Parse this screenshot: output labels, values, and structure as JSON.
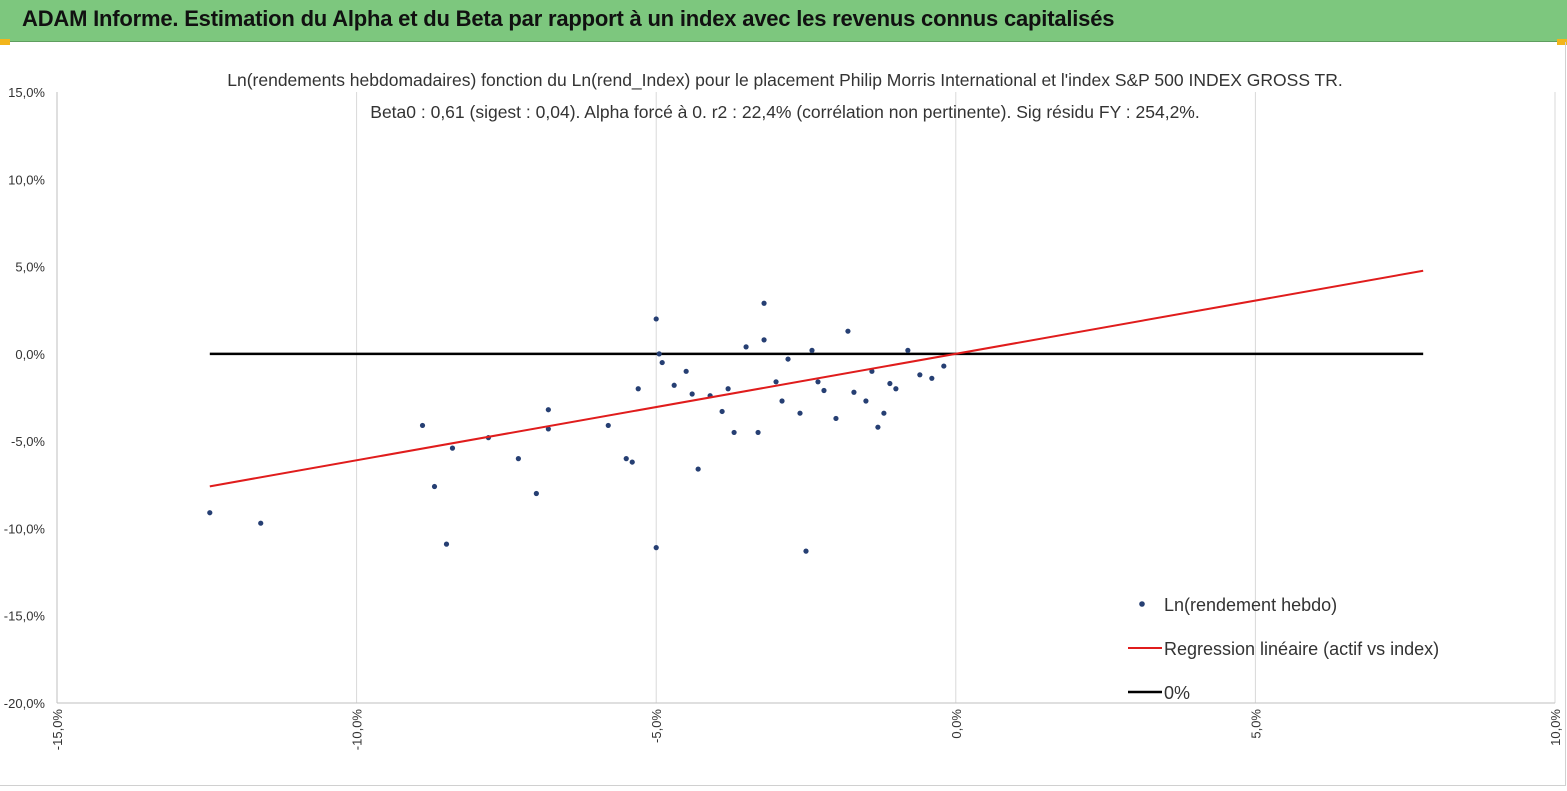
{
  "banner": {
    "title": "ADAM Informe. Estimation du Alpha et du Beta par rapport à un index avec les revenus connus capitalisés"
  },
  "colors": {
    "banner": "#7dc77e",
    "points": "#263f73",
    "regression": "#e01c1c",
    "zero_line": "#000000",
    "grid": "#d9d9d9"
  },
  "chart_data": {
    "type": "scatter",
    "title_line1": "Ln(rendements hebdomadaires) fonction du Ln(rend_Index) pour le placement Philip Morris International et l'index S&P 500 INDEX GROSS TR.",
    "title_line2": "Beta0 : 0,61 (sigest : 0,04). Alpha forcé à 0. r2 : 22,4% (corrélation non pertinente). Sig résidu FY : 254,2%.",
    "xlabel": "",
    "ylabel": "",
    "xlim": [
      -0.15,
      0.1
    ],
    "ylim": [
      -0.2,
      0.15
    ],
    "x_ticks": [
      -0.15,
      -0.1,
      -0.05,
      0.0,
      0.05,
      0.1
    ],
    "x_tick_labels": [
      "-15,0%",
      "-10,0%",
      "-5,0%",
      "0,0%",
      "5,0%",
      "10,0%"
    ],
    "y_ticks": [
      0.15,
      0.1,
      0.05,
      0.0,
      -0.05,
      -0.1,
      -0.15,
      -0.2
    ],
    "y_tick_labels": [
      "15,0%",
      "10,0%",
      "5,0%",
      "0,0%",
      "-5,0%",
      "-10,0%",
      "-15,0%",
      "-20,0%"
    ],
    "grid_vertical": true,
    "grid_horizontal": false,
    "legend_position": "bottom-right",
    "legend": [
      {
        "label": "Ln(rendement hebdo)",
        "kind": "marker"
      },
      {
        "label": "Regression linéaire (actif vs index)",
        "kind": "red-line"
      },
      {
        "label": "0%",
        "kind": "black-line"
      }
    ],
    "series": [
      {
        "name": "Ln(rendement hebdo)",
        "points": [
          [
            -0.1245,
            -0.091
          ],
          [
            -0.116,
            -0.097
          ],
          [
            -0.089,
            -0.041
          ],
          [
            -0.087,
            -0.076
          ],
          [
            -0.085,
            -0.109
          ],
          [
            -0.084,
            -0.054
          ],
          [
            -0.078,
            -0.048
          ],
          [
            -0.073,
            -0.06
          ],
          [
            -0.07,
            -0.08
          ],
          [
            -0.068,
            -0.043
          ],
          [
            -0.068,
            -0.032
          ],
          [
            -0.058,
            -0.041
          ],
          [
            -0.055,
            -0.06
          ],
          [
            -0.054,
            -0.062
          ],
          [
            -0.053,
            -0.02
          ],
          [
            -0.05,
            0.02
          ],
          [
            -0.05,
            -0.111
          ],
          [
            -0.0495,
            0.0
          ],
          [
            -0.049,
            -0.005
          ],
          [
            -0.047,
            -0.018
          ],
          [
            -0.045,
            -0.01
          ],
          [
            -0.044,
            -0.023
          ],
          [
            -0.043,
            -0.066
          ],
          [
            -0.041,
            -0.024
          ],
          [
            -0.039,
            -0.033
          ],
          [
            -0.038,
            -0.02
          ],
          [
            -0.037,
            -0.045
          ],
          [
            -0.035,
            0.004
          ],
          [
            -0.033,
            -0.045
          ],
          [
            -0.032,
            0.008
          ],
          [
            -0.032,
            0.029
          ],
          [
            -0.03,
            -0.016
          ],
          [
            -0.029,
            -0.027
          ],
          [
            -0.028,
            -0.003
          ],
          [
            -0.026,
            -0.034
          ],
          [
            -0.025,
            -0.113
          ],
          [
            -0.024,
            0.002
          ],
          [
            -0.023,
            -0.016
          ],
          [
            -0.022,
            -0.021
          ],
          [
            -0.02,
            -0.037
          ],
          [
            -0.018,
            0.013
          ],
          [
            -0.017,
            -0.022
          ],
          [
            -0.015,
            -0.027
          ],
          [
            -0.014,
            -0.01
          ],
          [
            -0.013,
            -0.042
          ],
          [
            -0.012,
            -0.034
          ],
          [
            -0.011,
            -0.017
          ],
          [
            -0.01,
            -0.02
          ],
          [
            -0.008,
            0.002
          ],
          [
            -0.006,
            -0.012
          ],
          [
            -0.004,
            -0.014
          ],
          [
            -0.002,
            -0.007
          ]
        ]
      },
      {
        "name": "Regression linéaire (actif vs index)",
        "x": [
          -0.1245,
          0.078
        ],
        "y": [
          -0.0759,
          0.0476
        ]
      },
      {
        "name": "0%",
        "x": [
          -0.1245,
          0.078
        ],
        "y": [
          0.0,
          0.0
        ]
      }
    ]
  }
}
